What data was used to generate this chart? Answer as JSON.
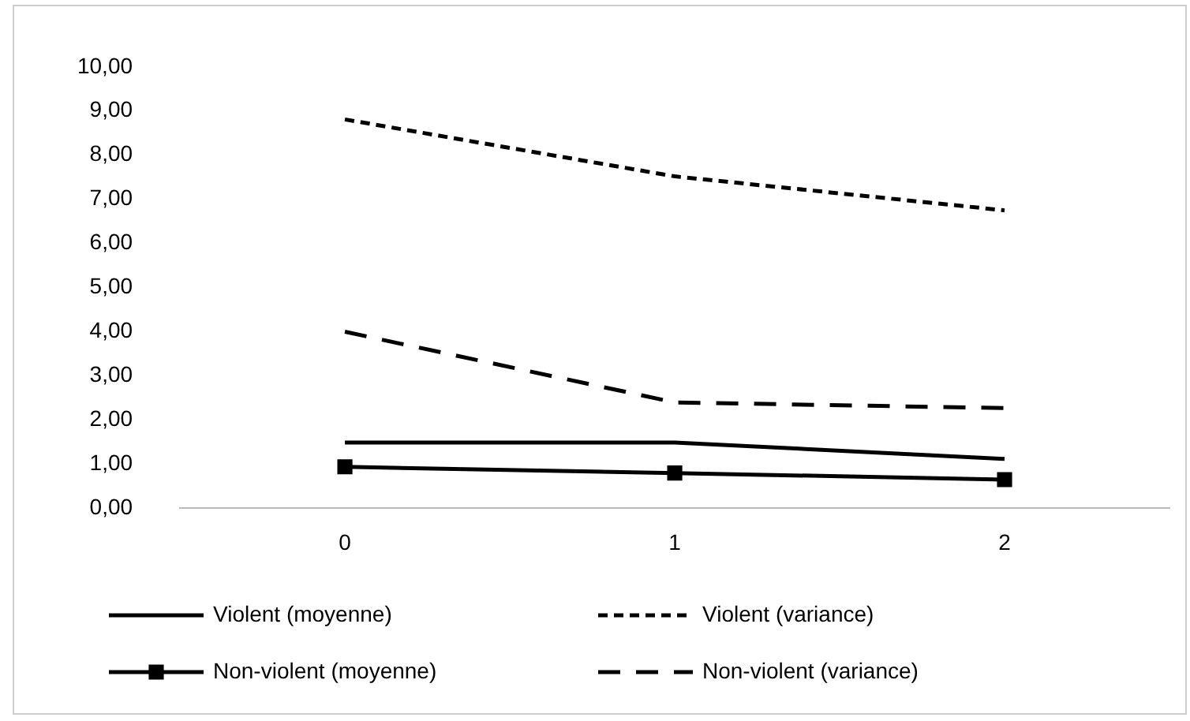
{
  "chart_data": {
    "type": "line",
    "categories": [
      "0",
      "1",
      "2"
    ],
    "series": [
      {
        "name": "Violent (moyenne)",
        "color": "#000000",
        "values": [
          1.49,
          1.49,
          1.12
        ],
        "line_style": "solid",
        "marker": "none"
      },
      {
        "name": "Violent (variance)",
        "color": "#000000",
        "values": [
          8.81,
          7.52,
          6.75
        ],
        "line_style": "dotted",
        "marker": "none"
      },
      {
        "name": "Non-violent (moyenne)",
        "color": "#000000",
        "values": [
          0.94,
          0.8,
          0.65
        ],
        "line_style": "solid",
        "marker": "square"
      },
      {
        "name": "Non-violent (variance)",
        "color": "#000000",
        "values": [
          4.0,
          2.4,
          2.27
        ],
        "line_style": "dashed",
        "marker": "none"
      }
    ],
    "ylim": [
      0,
      10
    ],
    "yticks": [
      {
        "value": 0,
        "label": "0,00"
      },
      {
        "value": 1,
        "label": "1,00"
      },
      {
        "value": 2,
        "label": "2,00"
      },
      {
        "value": 3,
        "label": "3,00"
      },
      {
        "value": 4,
        "label": "4,00"
      },
      {
        "value": 5,
        "label": "5,00"
      },
      {
        "value": 6,
        "label": "6,00"
      },
      {
        "value": 7,
        "label": "7,00"
      },
      {
        "value": 8,
        "label": "8,00"
      },
      {
        "value": 9,
        "label": "9,00"
      },
      {
        "value": 10,
        "label": "10,00"
      }
    ],
    "grid": false,
    "legend": "bottom"
  }
}
